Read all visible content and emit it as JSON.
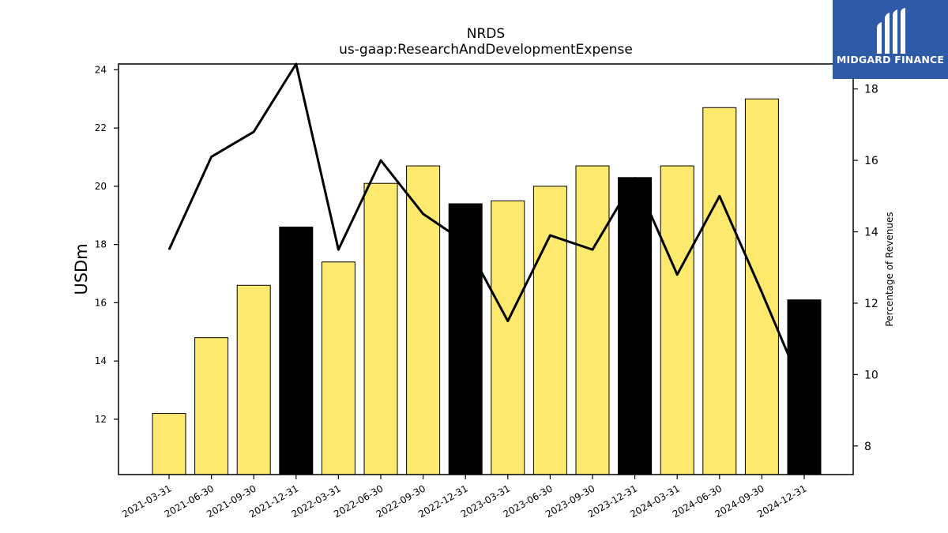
{
  "chart_data": {
    "type": "bar",
    "title": "NRDS",
    "subtitle": "us-gaap:ResearchAndDevelopmentExpense",
    "ylabel": "USDm",
    "ylabel_right": "Percentage of Revenues",
    "categories": [
      "2021-03-31",
      "2021-06-30",
      "2021-09-30",
      "2021-12-31",
      "2022-03-31",
      "2022-06-30",
      "2022-09-30",
      "2022-12-31",
      "2023-03-31",
      "2023-06-30",
      "2023-09-30",
      "2023-12-31",
      "2024-03-31",
      "2024-06-30",
      "2024-09-30",
      "2024-12-31"
    ],
    "series": [
      {
        "values": [
          12.2,
          14.8,
          16.6,
          18.6,
          17.4,
          20.1,
          20.7,
          19.4,
          19.5,
          20.0,
          20.7,
          20.3,
          20.7,
          22.7,
          23.0,
          16.1
        ],
        "axis": "left",
        "colors": [
          "#fde96e",
          "#fde96e",
          "#fde96e",
          "#000000",
          "#fde96e",
          "#fde96e",
          "#fde96e",
          "#000000",
          "#fde96e",
          "#fde96e",
          "#fde96e",
          "#000000",
          "#fde96e",
          "#fde96e",
          "#fde96e",
          "#000000"
        ]
      },
      {
        "type": "line",
        "axis": "right",
        "values": [
          13.5,
          16.1,
          16.8,
          18.7,
          13.5,
          16.0,
          14.5,
          13.7,
          11.5,
          13.9,
          13.5,
          15.5,
          12.8,
          15.0,
          12.3,
          9.5
        ],
        "color": "#000000"
      }
    ],
    "ylim": [
      10.1,
      24.2
    ],
    "ylim_right": [
      7.2,
      18.7
    ],
    "yticks": [
      "12",
      "14",
      "16",
      "18",
      "20",
      "22",
      "24"
    ],
    "yticks_right": [
      "8",
      "10",
      "12",
      "14",
      "16",
      "18"
    ],
    "grid": false
  },
  "logo": {
    "text": "MIDGARD FINANCE",
    "background": "#2f5aa8"
  }
}
